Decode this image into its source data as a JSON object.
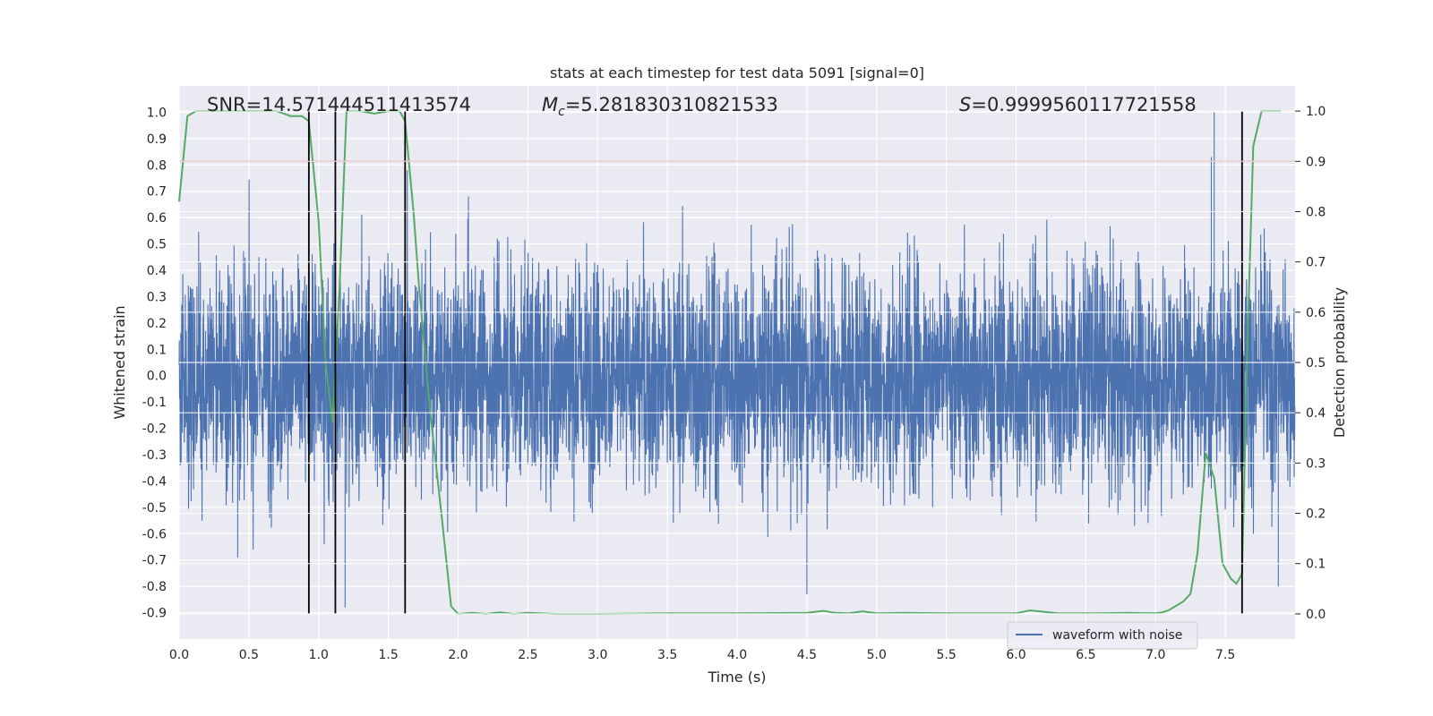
{
  "chart_data": {
    "type": "line",
    "title": "stats at each timestep for test data 5091 [signal=0]",
    "xlabel": "Time (s)",
    "ylabel_left": "Whitened strain",
    "ylabel_right": "Detection probability",
    "xlim": [
      0.0,
      8.0
    ],
    "ylim_left": [
      -1.0,
      1.1
    ],
    "ylim_right": [
      -0.05,
      1.05
    ],
    "x_ticks": [
      "0.0",
      "0.5",
      "1.0",
      "1.5",
      "2.0",
      "2.5",
      "3.0",
      "3.5",
      "4.0",
      "4.5",
      "5.0",
      "5.5",
      "6.0",
      "6.5",
      "7.0",
      "7.5"
    ],
    "y_ticks_left": [
      "1.0",
      "0.9",
      "0.8",
      "0.7",
      "0.6",
      "0.5",
      "0.4",
      "0.3",
      "0.2",
      "0.1",
      "0.0",
      "-0.1",
      "-0.2",
      "-0.3",
      "-0.4",
      "-0.5",
      "-0.6",
      "-0.7",
      "-0.8",
      "-0.9"
    ],
    "y_ticks_right": [
      "1.0",
      "0.9",
      "0.8",
      "0.7",
      "0.6",
      "0.5",
      "0.4",
      "0.3",
      "0.2",
      "0.1",
      "0.0"
    ],
    "grid": true,
    "legend_position": "bottom-right",
    "annotations": {
      "snr": "SNR=14.571444511413574",
      "mc_symbol": "M",
      "mc_sub": "c",
      "mc_value": "=5.281830310821533",
      "s_symbol": "S",
      "s_value": "=0.9999560117721558"
    },
    "threshold": {
      "value": 0.9,
      "axis": "right",
      "color": "#c44e52"
    },
    "vertical_markers_s": [
      0.93,
      1.12,
      1.62,
      7.62
    ],
    "series": [
      {
        "name": "waveform with noise",
        "axis": "left",
        "color": "#4c72b0",
        "kind": "noise",
        "approx_envelope": [
          -0.55,
          0.55
        ],
        "notable_extremes": [
          {
            "x": 7.42,
            "y": 1.0
          },
          {
            "x": 4.5,
            "y": -0.83
          },
          {
            "x": 7.4,
            "y": 0.83
          },
          {
            "x": 1.19,
            "y": -0.88
          },
          {
            "x": 7.88,
            "y": -0.8
          },
          {
            "x": 0.42,
            "y": -0.69
          }
        ]
      },
      {
        "name": "",
        "axis": "right",
        "color": "#55a868",
        "kind": "probability",
        "x": [
          0.0,
          0.06,
          0.12,
          0.2,
          0.3,
          0.5,
          0.7,
          0.8,
          0.88,
          0.93,
          1.0,
          1.05,
          1.1,
          1.15,
          1.2,
          1.3,
          1.4,
          1.5,
          1.58,
          1.62,
          1.68,
          1.72,
          1.8,
          1.88,
          1.95,
          2.0,
          2.1,
          2.2,
          2.3,
          2.4,
          2.5,
          2.7,
          3.0,
          3.5,
          4.0,
          4.5,
          4.62,
          4.7,
          4.8,
          4.9,
          5.0,
          5.2,
          5.5,
          6.0,
          6.1,
          6.3,
          6.6,
          6.8,
          7.0,
          7.05,
          7.1,
          7.2,
          7.25,
          7.3,
          7.36,
          7.42,
          7.48,
          7.54,
          7.58,
          7.62,
          7.66,
          7.7,
          7.76,
          7.9
        ],
        "y": [
          0.82,
          0.99,
          1.0,
          1.0,
          1.0,
          1.0,
          1.0,
          0.99,
          0.99,
          0.98,
          0.78,
          0.5,
          0.38,
          0.65,
          1.0,
          1.0,
          0.995,
          1.0,
          1.0,
          0.98,
          0.8,
          0.65,
          0.4,
          0.2,
          0.015,
          0.0,
          0.002,
          0.0,
          0.003,
          0.0,
          0.002,
          0.0,
          0.0,
          0.001,
          0.001,
          0.002,
          0.006,
          0.002,
          0.001,
          0.005,
          0.001,
          0.002,
          0.001,
          0.001,
          0.007,
          0.001,
          0.001,
          0.002,
          0.001,
          0.003,
          0.008,
          0.025,
          0.04,
          0.12,
          0.32,
          0.27,
          0.1,
          0.07,
          0.06,
          0.08,
          0.55,
          0.93,
          1.0,
          1.0
        ]
      }
    ]
  }
}
